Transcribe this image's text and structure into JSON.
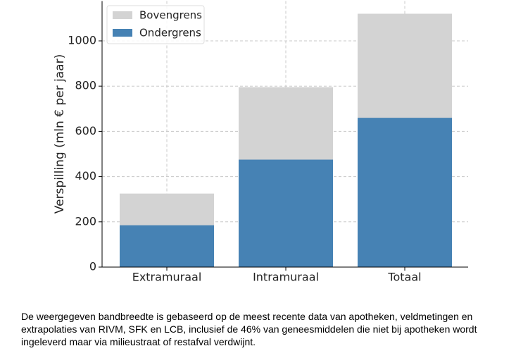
{
  "chart_data": {
    "type": "bar",
    "barmode": "overlay",
    "ylabel": "Verspilling (mln € per jaar)",
    "categories": [
      "Extramuraal",
      "Intramuraal",
      "Totaal"
    ],
    "series": [
      {
        "name": "Bovengrens",
        "color": "#d3d3d3",
        "values": [
          325,
          795,
          1120
        ]
      },
      {
        "name": "Ondergrens",
        "color": "#4682b4",
        "values": [
          185,
          475,
          660
        ]
      }
    ],
    "ylim": [
      0,
      1176
    ],
    "yticks": [
      0,
      200,
      400,
      600,
      800,
      1000
    ],
    "grid": true,
    "legend": "upper left",
    "caption": "De weergegeven bandbreedte is gebaseerd op de meest recente data van apotheken, veldmetingen en extrapolaties van RIVM, SFK en LCB, inclusief de 46% van geneesmiddelen die niet bij apotheken wordt ingeleverd maar via milieustraat of restafval verdwijnt."
  }
}
